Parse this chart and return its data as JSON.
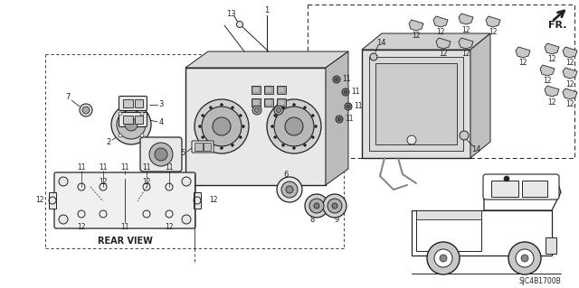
{
  "background_color": "#ffffff",
  "rear_view_label": "REAR VIEW",
  "part_code": "SJC4B1700B",
  "fr_label": "FR.",
  "line_color": "#222222",
  "gray_fill": "#c8c8c8",
  "light_gray": "#e8e8e8",
  "dark_gray": "#888888"
}
